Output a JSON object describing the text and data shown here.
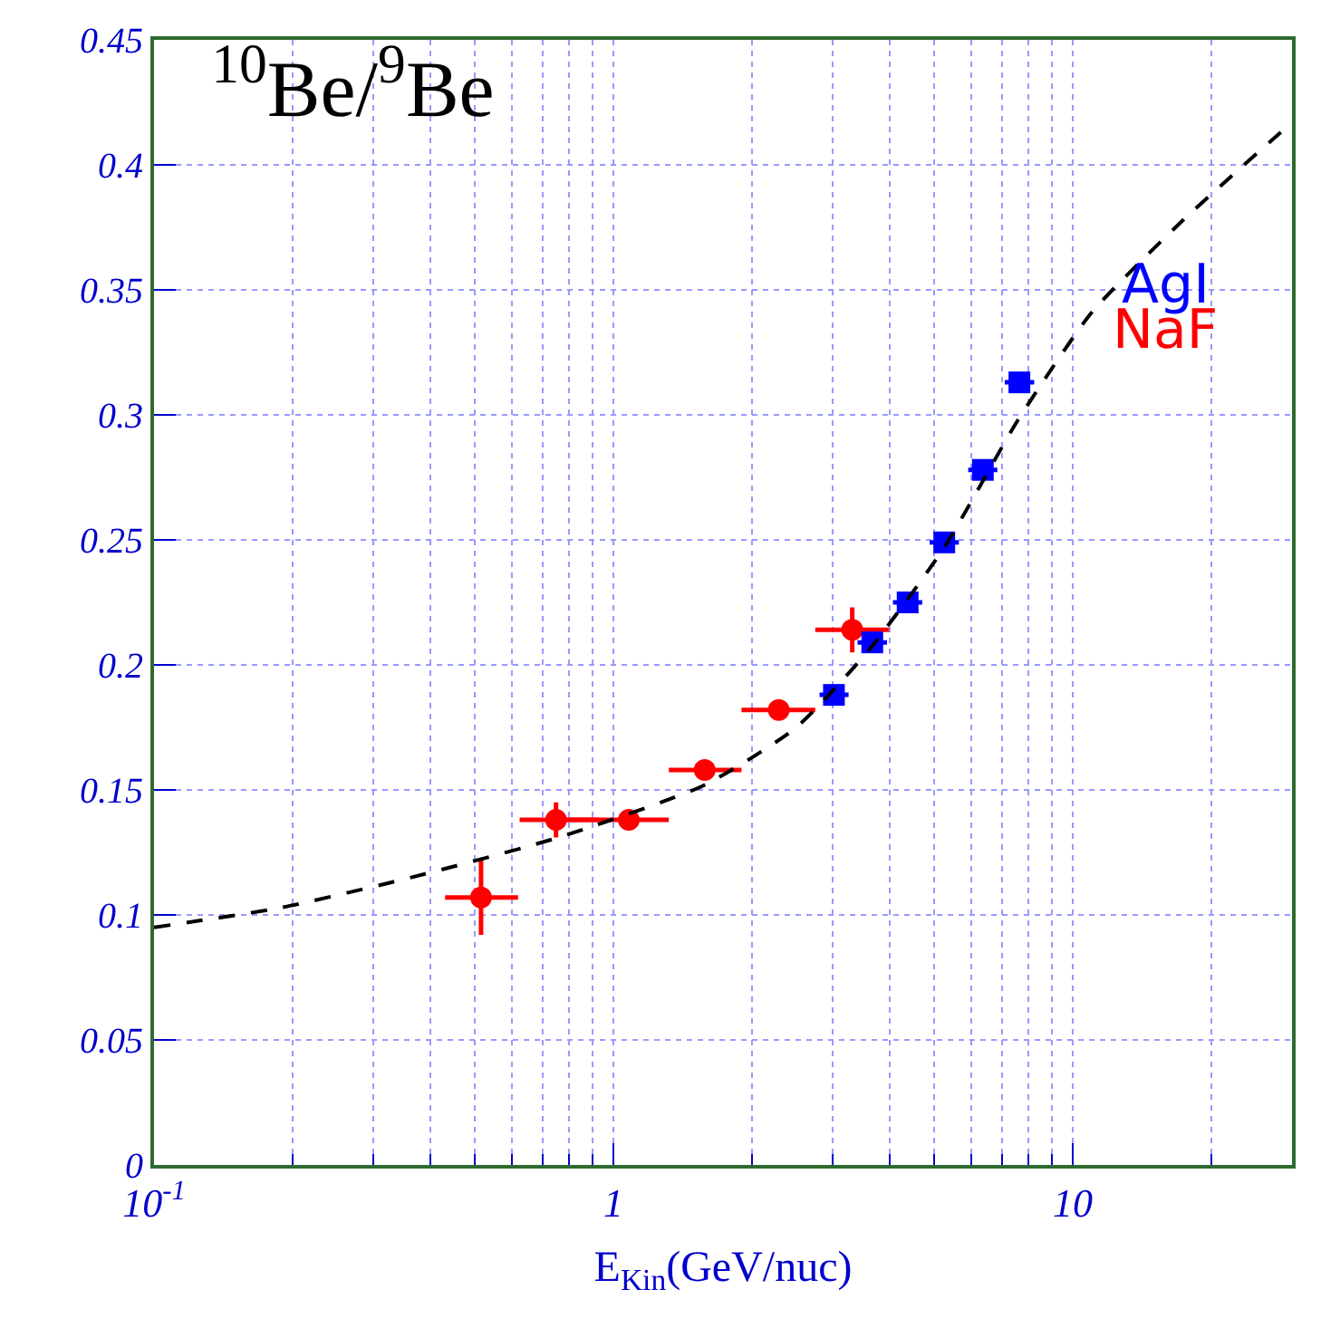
{
  "chart_data": {
    "type": "scatter",
    "title": "$^{10}$Be/$^{9}$Be",
    "xlabel": "E$_{Kin}$(GeV/nuc)",
    "log": "x",
    "grid": true,
    "legend": false,
    "xlim": [
      0.1,
      30
    ],
    "xticks": [
      {
        "value": 0.1,
        "label": "10$^{-1}$"
      },
      1,
      10
    ],
    "ylim": [
      0,
      0.45
    ],
    "yticks": [
      0,
      0.05,
      0.1,
      0.15,
      0.2,
      0.25,
      0.3,
      0.35,
      0.4,
      0.45
    ],
    "series": [
      {
        "name": "NaF",
        "color": "#ff0000",
        "marker": "circle",
        "x": [
          0.515,
          0.75,
          1.08,
          1.58,
          2.29,
          3.31
        ],
        "values": [
          0.107,
          0.138,
          0.138,
          0.158,
          0.182,
          0.214
        ],
        "errors": [
          0.015,
          0.007,
          null,
          null,
          null,
          0.009
        ],
        "xerrors": [
          [
            0.43,
            0.62
          ],
          [
            0.625,
            0.93
          ],
          [
            0.77,
            1.32
          ],
          [
            1.32,
            1.9
          ],
          [
            1.9,
            2.75
          ],
          [
            2.75,
            3.98
          ]
        ]
      },
      {
        "name": "AgI",
        "color": "#0000ff",
        "marker": "square",
        "x": [
          3.02,
          3.66,
          4.37,
          5.25,
          6.37,
          7.65
        ],
        "values": [
          0.188,
          0.209,
          0.225,
          0.249,
          0.278,
          0.313
        ],
        "xerrors": [
          [
            2.81,
            3.25
          ],
          [
            3.4,
            3.94
          ],
          [
            4.06,
            4.7
          ],
          [
            4.88,
            5.65
          ],
          [
            5.92,
            6.85
          ],
          [
            7.11,
            8.24
          ]
        ]
      },
      {
        "type": "line",
        "color": "#000000",
        "line_style": "dashed",
        "marker": "none",
        "x": [
          0.1,
          0.19,
          0.363,
          0.76,
          1.58,
          2.5,
          3.6,
          5.25,
          7.6,
          11,
          17.4,
          30
        ],
        "values": [
          0.095,
          0.103,
          0.115,
          0.131,
          0.152,
          0.175,
          0.206,
          0.247,
          0.298,
          0.341,
          0.378,
          0.417
        ]
      }
    ]
  }
}
